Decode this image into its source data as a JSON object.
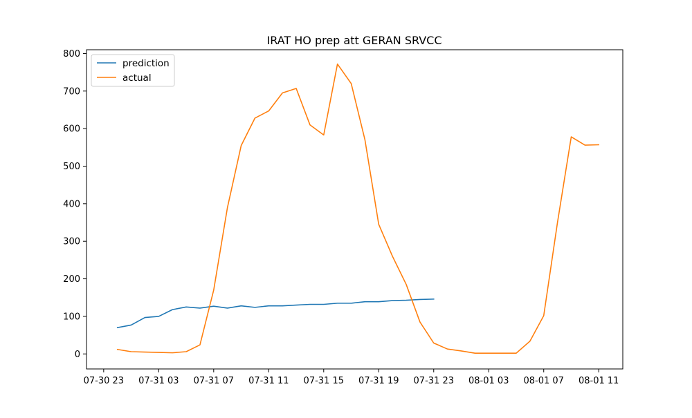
{
  "chart_data": {
    "type": "line",
    "title": "IRAT HO prep att GERAN SRVCC",
    "xlabel": "",
    "ylabel": "",
    "x_axis": {
      "type": "datetime",
      "range": [
        "2023-07-30T21:45",
        "2023-08-01T12:45"
      ],
      "tick_values": [
        "2023-07-30T23:00",
        "2023-07-31T03:00",
        "2023-07-31T07:00",
        "2023-07-31T11:00",
        "2023-07-31T15:00",
        "2023-07-31T19:00",
        "2023-07-31T23:00",
        "2023-08-01T03:00",
        "2023-08-01T07:00",
        "2023-08-01T11:00"
      ],
      "tick_labels": [
        "07-30 23",
        "07-31 03",
        "07-31 07",
        "07-31 11",
        "07-31 15",
        "07-31 19",
        "07-31 23",
        "08-01 03",
        "08-01 07",
        "08-01 11"
      ]
    },
    "y_axis": {
      "range": [
        -40,
        810
      ],
      "ticks": [
        0,
        100,
        200,
        300,
        400,
        500,
        600,
        700,
        800
      ],
      "tick_labels": [
        "0",
        "100",
        "200",
        "300",
        "400",
        "500",
        "600",
        "700",
        "800"
      ]
    },
    "grid": false,
    "legend": {
      "position": "top-left"
    },
    "series": [
      {
        "name": "prediction",
        "color": "#1f77b4",
        "x": [
          "2023-07-31T00:00",
          "2023-07-31T01:00",
          "2023-07-31T02:00",
          "2023-07-31T03:00",
          "2023-07-31T04:00",
          "2023-07-31T05:00",
          "2023-07-31T06:00",
          "2023-07-31T07:00",
          "2023-07-31T08:00",
          "2023-07-31T09:00",
          "2023-07-31T10:00",
          "2023-07-31T11:00",
          "2023-07-31T12:00",
          "2023-07-31T13:00",
          "2023-07-31T14:00",
          "2023-07-31T15:00",
          "2023-07-31T16:00",
          "2023-07-31T17:00",
          "2023-07-31T18:00",
          "2023-07-31T19:00",
          "2023-07-31T20:00",
          "2023-07-31T21:00",
          "2023-07-31T22:00",
          "2023-07-31T23:00"
        ],
        "values": [
          70,
          77,
          97,
          100,
          118,
          125,
          122,
          127,
          122,
          128,
          124,
          128,
          128,
          130,
          132,
          132,
          135,
          135,
          139,
          139,
          142,
          143,
          145,
          146
        ]
      },
      {
        "name": "actual",
        "color": "#ff7f0e",
        "x": [
          "2023-07-31T00:00",
          "2023-07-31T01:00",
          "2023-07-31T02:00",
          "2023-07-31T03:00",
          "2023-07-31T04:00",
          "2023-07-31T05:00",
          "2023-07-31T06:00",
          "2023-07-31T07:00",
          "2023-07-31T08:00",
          "2023-07-31T09:00",
          "2023-07-31T10:00",
          "2023-07-31T11:00",
          "2023-07-31T12:00",
          "2023-07-31T13:00",
          "2023-07-31T14:00",
          "2023-07-31T15:00",
          "2023-07-31T16:00",
          "2023-07-31T17:00",
          "2023-07-31T18:00",
          "2023-07-31T19:00",
          "2023-07-31T20:00",
          "2023-07-31T21:00",
          "2023-07-31T22:00",
          "2023-07-31T23:00",
          "2023-08-01T00:00",
          "2023-08-01T01:00",
          "2023-08-01T02:00",
          "2023-08-01T03:00",
          "2023-08-01T04:00",
          "2023-08-01T05:00",
          "2023-08-01T06:00",
          "2023-08-01T07:00",
          "2023-08-01T08:00",
          "2023-08-01T09:00",
          "2023-08-01T10:00",
          "2023-08-01T11:00"
        ],
        "values": [
          12,
          6,
          5,
          4,
          3,
          6,
          24,
          170,
          390,
          555,
          628,
          647,
          695,
          707,
          610,
          583,
          772,
          720,
          570,
          345,
          260,
          185,
          85,
          29,
          13,
          8,
          2,
          2,
          2,
          2,
          34,
          102,
          350,
          578,
          556,
          557
        ]
      }
    ]
  }
}
